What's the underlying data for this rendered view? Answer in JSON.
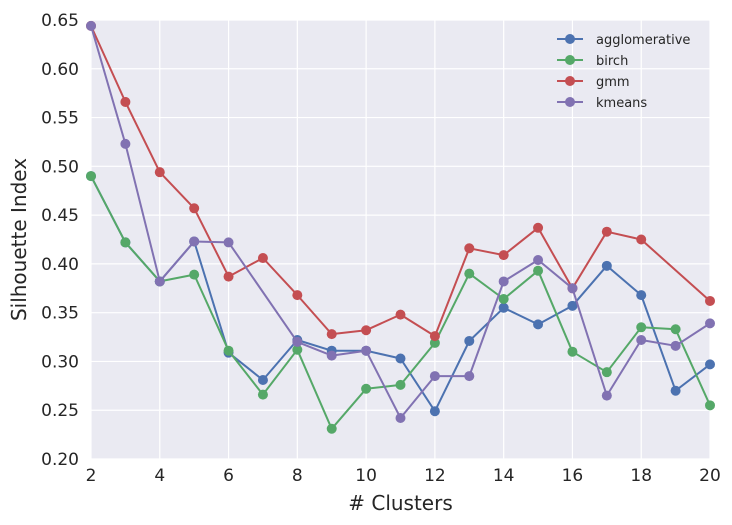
{
  "chart_data": {
    "type": "line",
    "title": "",
    "xlabel": "# Clusters",
    "ylabel": "Silhouette Index",
    "xlim": [
      2,
      20
    ],
    "ylim": [
      0.2,
      0.65
    ],
    "xticks": [
      "2",
      "4",
      "6",
      "8",
      "10",
      "12",
      "14",
      "16",
      "18",
      "20"
    ],
    "yticks": [
      "0.20",
      "0.25",
      "0.30",
      "0.35",
      "0.40",
      "0.45",
      "0.50",
      "0.55",
      "0.60",
      "0.65"
    ],
    "grid": true,
    "legend": "top-right",
    "x": [
      2,
      3,
      4,
      5,
      6,
      7,
      8,
      9,
      10,
      11,
      12,
      13,
      14,
      15,
      16,
      17,
      18,
      19,
      20
    ],
    "series": [
      {
        "name": "agglomerative",
        "color": "#4c72b0",
        "values": [
          0.49,
          0.422,
          0.382,
          0.423,
          0.309,
          0.281,
          0.322,
          0.311,
          0.311,
          0.303,
          0.249,
          0.321,
          0.355,
          0.338,
          0.357,
          0.398,
          0.368,
          0.27,
          0.297
        ]
      },
      {
        "name": "birch",
        "color": "#55a868",
        "values": [
          0.49,
          0.422,
          0.382,
          0.389,
          0.311,
          0.266,
          0.312,
          0.231,
          0.272,
          0.276,
          0.319,
          0.39,
          0.364,
          0.393,
          0.31,
          0.289,
          0.335,
          0.333,
          0.255
        ]
      },
      {
        "name": "gmm",
        "color": "#c44e52",
        "values": [
          0.644,
          0.566,
          0.494,
          0.457,
          0.387,
          0.406,
          0.368,
          0.328,
          0.332,
          0.348,
          0.326,
          0.416,
          0.409,
          0.437,
          0.375,
          0.433,
          0.425,
          null,
          0.362
        ]
      },
      {
        "name": "kmeans",
        "color": "#8172b2",
        "values": [
          0.644,
          0.523,
          0.382,
          0.423,
          0.422,
          null,
          0.32,
          0.306,
          0.311,
          0.242,
          0.285,
          0.285,
          0.382,
          0.404,
          0.375,
          0.265,
          0.322,
          0.316,
          0.339
        ]
      }
    ]
  }
}
